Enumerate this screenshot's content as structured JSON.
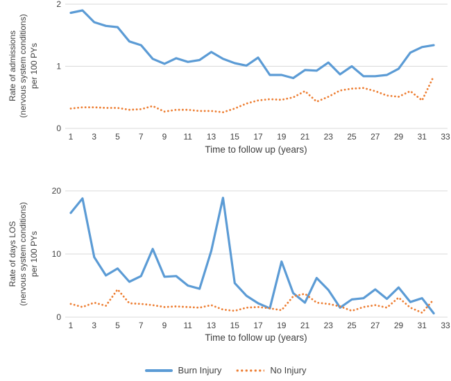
{
  "figure_title": "",
  "legend": {
    "items": [
      {
        "label": "Burn Injury",
        "color": "#5B9BD5",
        "style": "solid"
      },
      {
        "label": "No Injury",
        "color": "#ED7D31",
        "style": "dotted"
      }
    ]
  },
  "chart_data": [
    {
      "type": "line",
      "title": "",
      "xlabel": "Time to follow up (years)",
      "ylabel": "Rate of admissions\n(nervous system conditions)\nper 100 PYs",
      "xlim": [
        1,
        33
      ],
      "ylim": [
        0,
        2
      ],
      "xticks": [
        1,
        3,
        5,
        7,
        9,
        11,
        13,
        15,
        17,
        19,
        21,
        23,
        25,
        27,
        29,
        31,
        33
      ],
      "yticks": [
        0,
        1,
        2
      ],
      "grid": true,
      "legend_position": "bottom",
      "x": [
        1,
        2,
        3,
        4,
        5,
        6,
        7,
        8,
        9,
        10,
        11,
        12,
        13,
        14,
        15,
        16,
        17,
        18,
        19,
        20,
        21,
        22,
        23,
        24,
        25,
        26,
        27,
        28,
        29,
        30,
        31,
        32
      ],
      "series": [
        {
          "name": "Burn Injury",
          "key": "burn-injury-line",
          "color": "#5B9BD5",
          "style": "solid",
          "values": [
            1.86,
            1.9,
            1.71,
            1.65,
            1.63,
            1.4,
            1.34,
            1.12,
            1.04,
            1.13,
            1.07,
            1.1,
            1.23,
            1.12,
            1.05,
            1.01,
            1.14,
            0.86,
            0.86,
            0.81,
            0.94,
            0.93,
            1.06,
            0.87,
            1.0,
            0.84,
            0.84,
            0.86,
            0.96,
            1.22,
            1.31,
            1.34
          ]
        },
        {
          "name": "No Injury",
          "key": "no-injury-line",
          "color": "#ED7D31",
          "style": "dotted",
          "values": [
            0.32,
            0.34,
            0.34,
            0.33,
            0.33,
            0.3,
            0.31,
            0.36,
            0.27,
            0.3,
            0.3,
            0.28,
            0.28,
            0.26,
            0.32,
            0.4,
            0.45,
            0.47,
            0.46,
            0.5,
            0.6,
            0.43,
            0.51,
            0.61,
            0.64,
            0.65,
            0.6,
            0.53,
            0.51,
            0.6,
            0.45,
            0.84
          ]
        }
      ]
    },
    {
      "type": "line",
      "title": "",
      "xlabel": "Time to follow up (years)",
      "ylabel": "Rate of days LOS\n(nervous system conditions)\nper 100 PYs",
      "xlim": [
        1,
        33
      ],
      "ylim": [
        0,
        20
      ],
      "xticks": [
        1,
        3,
        5,
        7,
        9,
        11,
        13,
        15,
        17,
        19,
        21,
        23,
        25,
        27,
        29,
        31,
        33
      ],
      "yticks": [
        0,
        10,
        20
      ],
      "grid": true,
      "legend_position": "bottom",
      "x": [
        1,
        2,
        3,
        4,
        5,
        6,
        7,
        8,
        9,
        10,
        11,
        12,
        13,
        14,
        15,
        16,
        17,
        18,
        19,
        20,
        21,
        22,
        23,
        24,
        25,
        26,
        27,
        28,
        29,
        30,
        31,
        32
      ],
      "series": [
        {
          "name": "Burn Injury",
          "key": "burn-injury-line",
          "color": "#5B9BD5",
          "style": "solid",
          "values": [
            16.5,
            18.8,
            9.5,
            6.6,
            7.7,
            5.6,
            6.5,
            10.8,
            6.4,
            6.5,
            5.0,
            4.5,
            10.5,
            18.9,
            5.4,
            3.4,
            2.2,
            1.4,
            8.8,
            3.8,
            2.3,
            6.2,
            4.3,
            1.5,
            2.8,
            3.0,
            4.4,
            2.9,
            4.7,
            2.4,
            3.0,
            0.6
          ]
        },
        {
          "name": "No Injury",
          "key": "no-injury-line",
          "color": "#ED7D31",
          "style": "dotted",
          "values": [
            2.1,
            1.6,
            2.3,
            1.8,
            4.4,
            2.2,
            2.1,
            1.9,
            1.6,
            1.7,
            1.6,
            1.5,
            1.9,
            1.2,
            1.0,
            1.5,
            1.6,
            1.4,
            1.1,
            3.3,
            3.7,
            2.3,
            2.1,
            1.7,
            1.0,
            1.6,
            1.9,
            1.5,
            3.1,
            1.5,
            0.7,
            2.8
          ]
        }
      ]
    }
  ]
}
